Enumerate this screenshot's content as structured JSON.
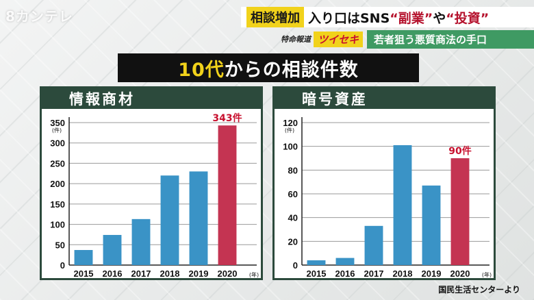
{
  "header": {
    "logo": "8カンテレ",
    "tag": "相談増加",
    "headline_part1": "入り口はSNS",
    "headline_q1": "“副業”",
    "headline_mid": "や",
    "headline_q2": "“投資”",
    "program": "特命報道",
    "brand": "ツイセキ",
    "subtitle": "若者狙う悪質商法の手口"
  },
  "title": {
    "highlight": "10代",
    "rest": "からの相談件数"
  },
  "source": "国民生活センターより",
  "colors": {
    "bar": "#3a93c6",
    "highlight_bar": "#c43452",
    "highlight_text": "#c8102e",
    "panel_header": "#2c4a3c"
  },
  "chart_data": [
    {
      "type": "bar",
      "title": "情報商材",
      "categories": [
        "2015",
        "2016",
        "2017",
        "2018",
        "2019",
        "2020"
      ],
      "values": [
        37,
        74,
        113,
        220,
        230,
        343
      ],
      "unit_label": "(件)",
      "x_unit_label": "(年)",
      "ylim": [
        0,
        350
      ],
      "yticks": [
        0,
        50,
        100,
        150,
        200,
        250,
        300,
        350
      ],
      "data_labels": [
        {
          "index": 5,
          "text": "343件"
        }
      ],
      "highlight_index": 5,
      "grid": true
    },
    {
      "type": "bar",
      "title": "暗号資産",
      "categories": [
        "2015",
        "2016",
        "2017",
        "2018",
        "2019",
        "2020"
      ],
      "values": [
        4,
        6,
        33,
        101,
        67,
        90
      ],
      "unit_label": "(件)",
      "x_unit_label": "(年)",
      "ylim": [
        0,
        120
      ],
      "yticks": [
        0,
        20,
        40,
        60,
        80,
        100,
        120
      ],
      "data_labels": [
        {
          "index": 5,
          "text": "90件"
        }
      ],
      "highlight_index": 5,
      "grid": true
    }
  ]
}
